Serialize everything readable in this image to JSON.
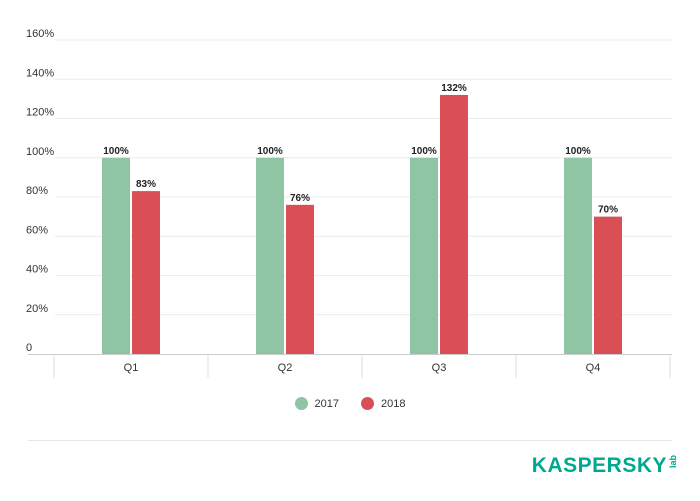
{
  "chart_data": {
    "type": "bar",
    "title": "",
    "xlabel": "",
    "ylabel": "",
    "categories": [
      "Q1",
      "Q2",
      "Q3",
      "Q4"
    ],
    "series": [
      {
        "name": "2017",
        "values": [
          100,
          100,
          100,
          100
        ],
        "color": "#8fc4a4"
      },
      {
        "name": "2018",
        "values": [
          83,
          76,
          132,
          70
        ],
        "color": "#da4f55"
      }
    ],
    "data_labels": [
      [
        "100%",
        "100%",
        "100%",
        "100%"
      ],
      [
        "83%",
        "76%",
        "132%",
        "70%"
      ]
    ],
    "ylim": [
      0,
      160
    ],
    "yticks": [
      0,
      20,
      40,
      60,
      80,
      100,
      120,
      140,
      160
    ],
    "ytick_labels": [
      "0",
      "20%",
      "40%",
      "60%",
      "80%",
      "100%",
      "120%",
      "140%",
      "160%"
    ],
    "grid": true,
    "legend_position": "bottom-center"
  },
  "branding": {
    "logo_text": "KASPERSKY",
    "logo_sub": "lab",
    "color": "#00a88e"
  }
}
